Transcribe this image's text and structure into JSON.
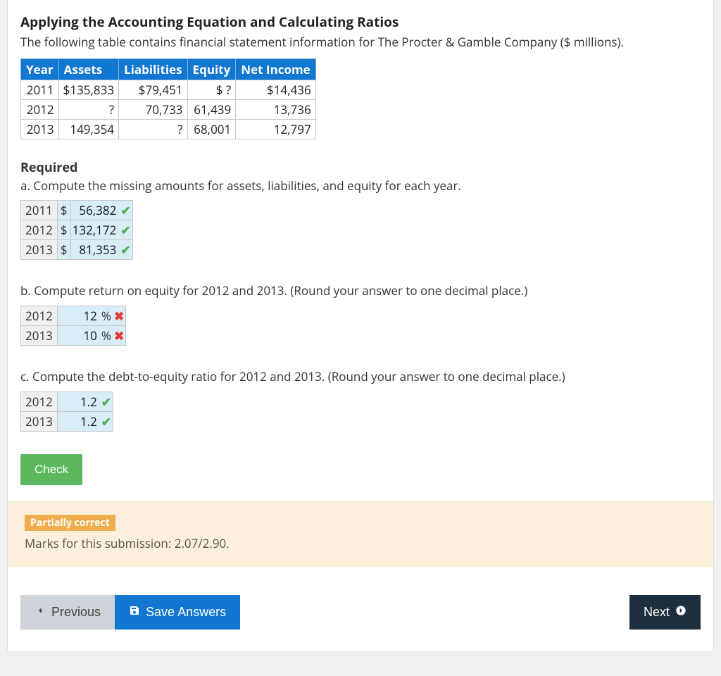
{
  "title": "Applying the Accounting Equation and Calculating Ratios",
  "intro": "The following table contains financial statement information for The Procter & Gamble Company ($ millions).",
  "fin_table": {
    "headers": [
      "Year",
      "Assets",
      "Liabilities",
      "Equity",
      "Net Income"
    ],
    "rows": [
      [
        "2011",
        "$135,833",
        "$79,451",
        "$ ?",
        "$14,436"
      ],
      [
        "2012",
        "?",
        "70,733",
        "61,439",
        "13,736"
      ],
      [
        "2013",
        "149,354",
        "?",
        "68,001",
        "12,797"
      ]
    ],
    "header_bg": "#1177d1",
    "header_color": "#ffffff"
  },
  "required_label": "Required",
  "part_a": {
    "prompt": "a. Compute the missing amounts for assets, liabilities, and equity for each year.",
    "rows": [
      {
        "year": "2011",
        "currency": "$",
        "value": "56,382",
        "correct": true
      },
      {
        "year": "2012",
        "currency": "$",
        "value": "132,172",
        "correct": true
      },
      {
        "year": "2013",
        "currency": "$",
        "value": "81,353",
        "correct": true
      }
    ]
  },
  "part_b": {
    "prompt": "b. Compute return on equity for 2012 and 2013. (Round your answer to one decimal place.)",
    "rows": [
      {
        "year": "2012",
        "value": "12",
        "unit": "%",
        "correct": false
      },
      {
        "year": "2013",
        "value": "10",
        "unit": "%",
        "correct": false
      }
    ]
  },
  "part_c": {
    "prompt": "c. Compute the debt-to-equity ratio for 2012 and 2013. (Round your answer to one decimal place.)",
    "rows": [
      {
        "year": "2012",
        "value": "1.2",
        "correct": true
      },
      {
        "year": "2013",
        "value": "1.2",
        "correct": true
      }
    ]
  },
  "check_label": "Check",
  "feedback": {
    "badge": "Partially correct",
    "badge_bg": "#f0ad4e",
    "marks": "Marks for this submission: 2.07/2.90.",
    "bg": "#fcefdc"
  },
  "nav": {
    "prev": "Previous",
    "save": "Save Answers",
    "next": "Next"
  },
  "colors": {
    "input_bg": "#d9edf7",
    "correct": "#5cb85c",
    "wrong": "#e53935",
    "save_btn": "#1177d1",
    "next_btn": "#1d2f3e",
    "prev_btn": "#ced4da"
  }
}
